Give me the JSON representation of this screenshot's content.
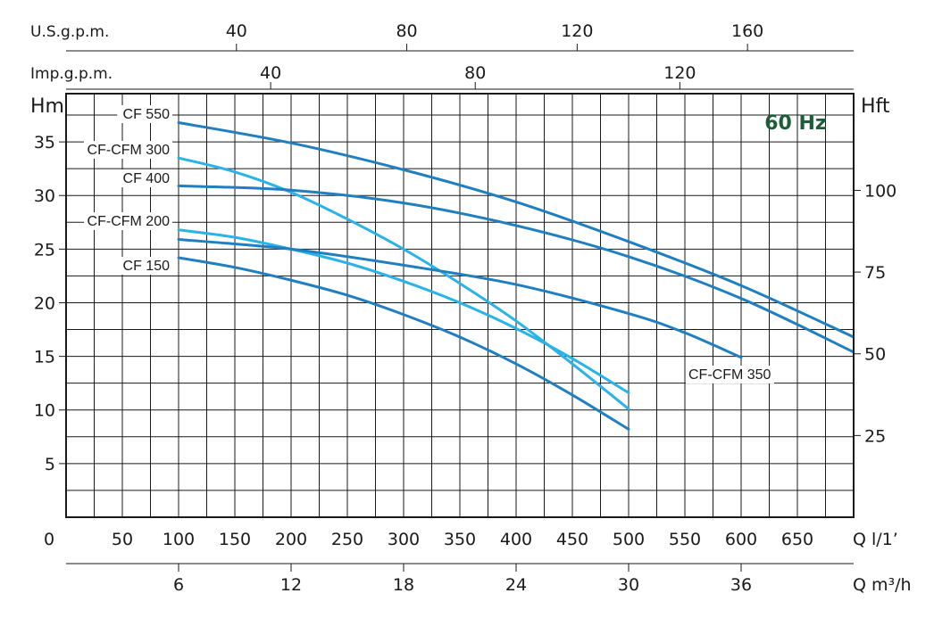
{
  "chart_data": {
    "type": "line",
    "badge": "60 Hz",
    "x_axis": {
      "primary": {
        "label": "Q l/1’",
        "ticks": [
          0,
          50,
          100,
          150,
          200,
          250,
          300,
          350,
          400,
          450,
          500,
          550,
          600,
          650
        ],
        "range": [
          0,
          700
        ]
      },
      "m3h": {
        "label": "Q m³/h",
        "ticks": [
          6,
          12,
          18,
          24,
          30,
          36
        ]
      },
      "us_gpm": {
        "label": "U.S.g.p.m.",
        "ticks": [
          40,
          80,
          120,
          160
        ]
      },
      "imp_gpm": {
        "label": "Imp.g.p.m.",
        "ticks": [
          40,
          80,
          120
        ]
      }
    },
    "y_axis": {
      "left": {
        "label": "Hm",
        "ticks": [
          5,
          10,
          15,
          20,
          25,
          30,
          35
        ],
        "range": [
          0,
          39.5
        ]
      },
      "right": {
        "label": "Hft",
        "ticks": [
          25,
          50,
          75,
          100
        ]
      }
    },
    "grid": true,
    "series": [
      {
        "name": "CF 550",
        "color": "#1f7fc0",
        "x": [
          100,
          200,
          300,
          400,
          500,
          600,
          700
        ],
        "y": [
          36.8,
          34.9,
          32.4,
          29.4,
          25.7,
          21.6,
          16.8
        ]
      },
      {
        "name": "CF-CFM 300",
        "color": "#29b3e8",
        "x": [
          100,
          150,
          200,
          250,
          300,
          350,
          400,
          450,
          500
        ],
        "y": [
          33.5,
          32.2,
          30.3,
          27.8,
          25.0,
          21.8,
          18.3,
          14.3,
          10.1
        ]
      },
      {
        "name": "CF 400",
        "color": "#1f7fc0",
        "x": [
          100,
          200,
          300,
          400,
          500,
          600,
          700
        ],
        "y": [
          30.9,
          30.5,
          29.3,
          27.2,
          24.3,
          20.4,
          15.4
        ]
      },
      {
        "name": "CF-CFM 200",
        "color": "#29b3e8",
        "x": [
          100,
          150,
          200,
          250,
          300,
          350,
          400,
          450,
          500
        ],
        "y": [
          26.8,
          26.1,
          25.0,
          23.7,
          22.0,
          20.0,
          17.6,
          14.8,
          11.6
        ]
      },
      {
        "name": "CF-CFM 350",
        "color": "#1f7fc0",
        "x": [
          100,
          200,
          300,
          400,
          500,
          550,
          600
        ],
        "y": [
          25.9,
          25.0,
          23.5,
          21.7,
          19.0,
          17.2,
          14.9
        ]
      },
      {
        "name": "CF 150",
        "color": "#1f7fc0",
        "x": [
          100,
          150,
          200,
          250,
          300,
          350,
          400,
          450,
          500
        ],
        "y": [
          24.2,
          23.3,
          22.1,
          20.7,
          18.9,
          16.8,
          14.3,
          11.4,
          8.2
        ]
      }
    ]
  }
}
